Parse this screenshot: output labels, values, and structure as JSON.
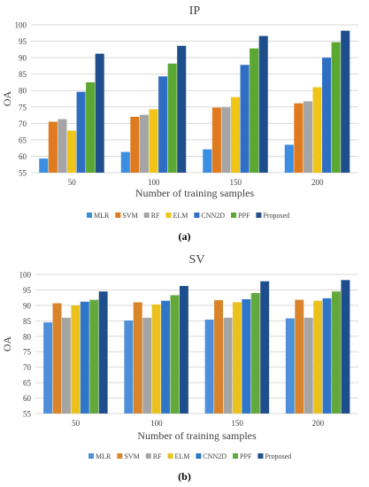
{
  "chart_data": [
    {
      "type": "bar",
      "title": "IP",
      "xlabel": "Number of training samples",
      "ylabel": "OA",
      "categories": [
        "50",
        "100",
        "150",
        "200"
      ],
      "ylim": [
        55,
        100
      ],
      "yticks": [
        55,
        60,
        65,
        70,
        75,
        80,
        85,
        90,
        95,
        100
      ],
      "grid": true,
      "legend_position": "bottom",
      "caption": "(a)",
      "series": [
        {
          "name": "MLR",
          "color": "#3b8ee0",
          "values": [
            59.3,
            61.3,
            62.1,
            63.5
          ]
        },
        {
          "name": "SVM",
          "color": "#e07a1f",
          "values": [
            70.5,
            72.0,
            74.8,
            76.1
          ]
        },
        {
          "name": "RF",
          "color": "#a5a5a5",
          "values": [
            71.3,
            72.6,
            74.9,
            76.7
          ]
        },
        {
          "name": "ELM",
          "color": "#f0c419",
          "values": [
            67.8,
            74.3,
            78.0,
            81.0
          ]
        },
        {
          "name": "CNN2D",
          "color": "#2e6fc4",
          "values": [
            79.6,
            84.3,
            87.8,
            90.0
          ]
        },
        {
          "name": "PPF",
          "color": "#5aa832",
          "values": [
            82.5,
            88.2,
            92.8,
            94.7
          ]
        },
        {
          "name": "Proposed",
          "color": "#1f4e8c",
          "values": [
            91.2,
            93.6,
            96.6,
            98.2
          ]
        }
      ]
    },
    {
      "type": "bar",
      "title": "SV",
      "xlabel": "Number of training samples",
      "ylabel": "OA",
      "categories": [
        "50",
        "100",
        "150",
        "200"
      ],
      "ylim": [
        55,
        100
      ],
      "yticks": [
        55,
        60,
        65,
        70,
        75,
        80,
        85,
        90,
        95,
        100
      ],
      "grid": true,
      "legend_position": "bottom",
      "caption": "(b)",
      "series": [
        {
          "name": "MLR",
          "color": "#4d8fdb",
          "values": [
            84.5,
            85.1,
            85.4,
            85.8
          ]
        },
        {
          "name": "SVM",
          "color": "#d9832a",
          "values": [
            90.7,
            91.0,
            91.7,
            91.8
          ]
        },
        {
          "name": "RF",
          "color": "#a5a5a5",
          "values": [
            86.0,
            86.0,
            86.0,
            86.0
          ]
        },
        {
          "name": "ELM",
          "color": "#ebc21d",
          "values": [
            90.0,
            90.3,
            91.0,
            91.5
          ]
        },
        {
          "name": "CNN2D",
          "color": "#2f76c8",
          "values": [
            91.2,
            91.5,
            92.0,
            92.3
          ]
        },
        {
          "name": "PPF",
          "color": "#62a83b",
          "values": [
            91.8,
            93.3,
            94.0,
            94.5
          ]
        },
        {
          "name": "Proposed",
          "color": "#1f4e8c",
          "values": [
            94.5,
            96.3,
            97.8,
            98.2
          ]
        }
      ]
    }
  ]
}
